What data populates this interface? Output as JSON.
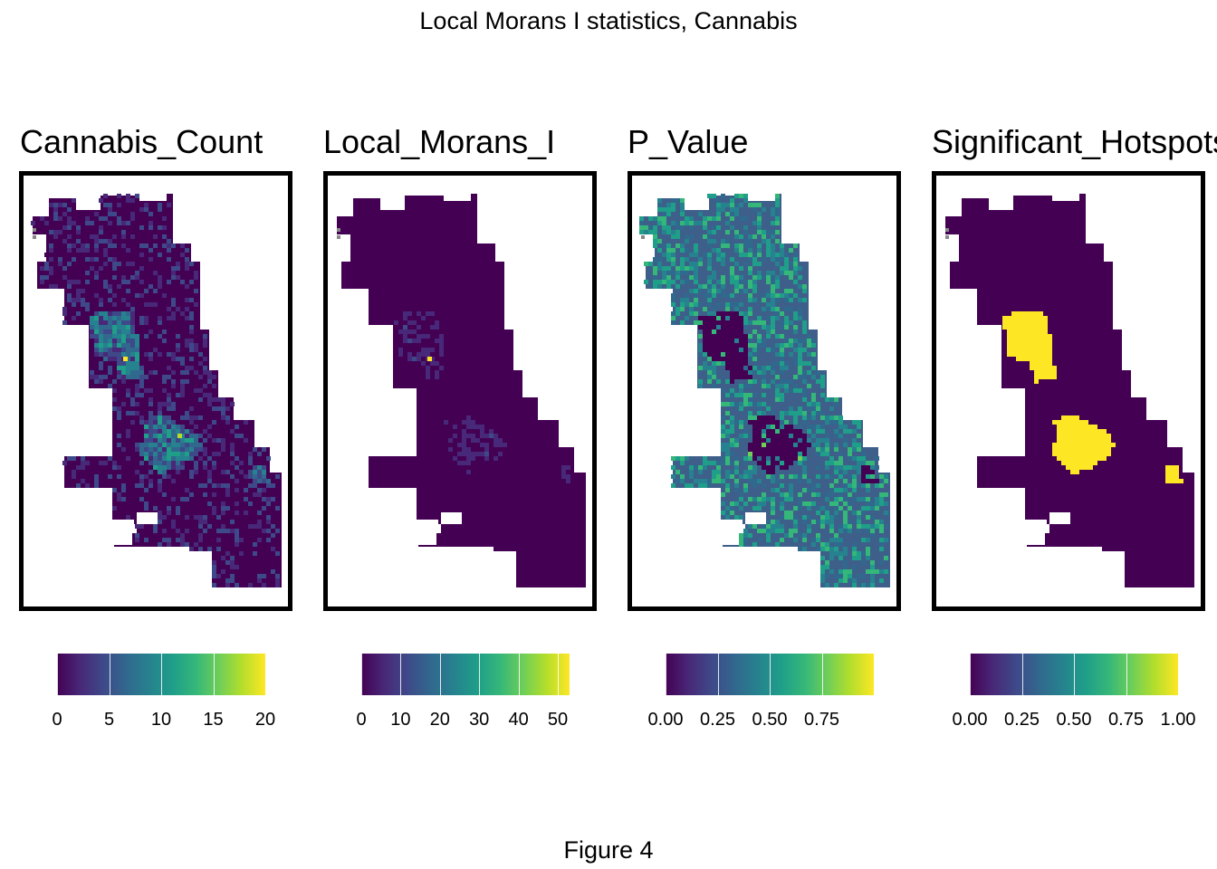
{
  "figure_title": "Local Morans I statistics, Cannabis",
  "caption": "Figure 4",
  "palette": "viridis",
  "panels": [
    {
      "title": "Cannabis_Count",
      "legend": {
        "min": 0,
        "max": 20,
        "ticks": [
          "0",
          "5",
          "10",
          "15",
          "20"
        ],
        "tick_values": [
          0,
          5,
          10,
          15,
          20
        ]
      }
    },
    {
      "title": "Local_Morans_I",
      "legend": {
        "min": 0,
        "max": 53,
        "ticks": [
          "0",
          "10",
          "20",
          "30",
          "40",
          "50"
        ],
        "tick_values": [
          0,
          10,
          20,
          30,
          40,
          50
        ]
      }
    },
    {
      "title": "P_Value",
      "legend": {
        "min": 0,
        "max": 1,
        "ticks": [
          "0.00",
          "0.25",
          "0.50",
          "0.75"
        ],
        "tick_values": [
          0,
          0.25,
          0.5,
          0.75
        ]
      }
    },
    {
      "title": "Significant_Hotspots",
      "legend": {
        "min": 0,
        "max": 1,
        "ticks": [
          "0.00",
          "0.25",
          "0.50",
          "0.75",
          "1.00"
        ],
        "tick_values": [
          0,
          0.25,
          0.5,
          0.75,
          1
        ]
      }
    }
  ]
}
